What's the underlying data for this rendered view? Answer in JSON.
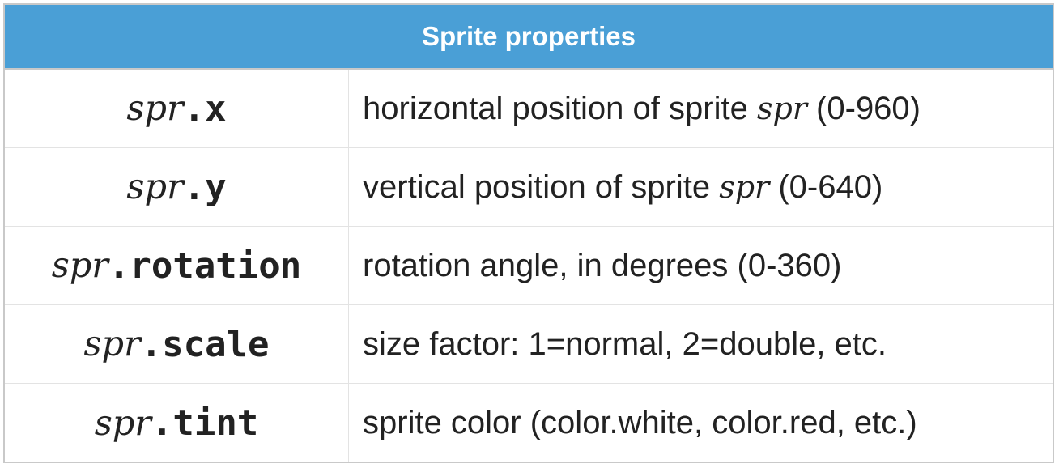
{
  "title": "Sprite properties",
  "rows": [
    {
      "var": "spr",
      "prop": ".x",
      "desc_before": "horizontal position of sprite ",
      "desc_var": "spr",
      "desc_after": " (0-960)"
    },
    {
      "var": "spr",
      "prop": ".y",
      "desc_before": "vertical position of sprite ",
      "desc_var": "spr",
      "desc_after": " (0-640)"
    },
    {
      "var": "spr",
      "prop": ".rotation",
      "desc_before": "rotation angle, in degrees (0-360)"
    },
    {
      "var": "spr",
      "prop": ".scale",
      "desc_before": "size factor: 1=normal, 2=double, etc."
    },
    {
      "var": "spr",
      "prop": ".tint",
      "desc_before": "sprite color (color.white, color.red, etc.)"
    }
  ]
}
